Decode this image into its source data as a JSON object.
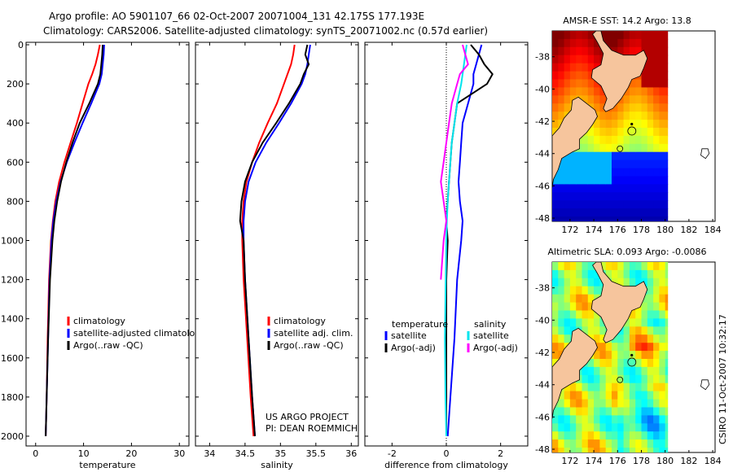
{
  "header": {
    "line1": "Argo profile: AO 5901107_66 02-Oct-2007 20071004_131 42.175S 177.193E",
    "line2": "Climatology: CARS2006. Satellite-adjusted climatology: synTS_20071002.nc (0.57d earlier)"
  },
  "credit": {
    "line1": "US ARGO PROJECT",
    "line2": "PI: DEAN ROEMMICH"
  },
  "side_text": "CSIRO 11-Oct-2007 10:32:17",
  "colors": {
    "climatology": "#ff0000",
    "satellite": "#0000ff",
    "argo": "#000000",
    "sat_sal": "#00e5ee",
    "argo_adj_sal": "#ff00ff"
  },
  "chart_data": [
    {
      "type": "line",
      "id": "temperature",
      "xlabel": "temperature",
      "xlim": [
        -2,
        32
      ],
      "ylim": [
        0,
        2050
      ],
      "xticks": [
        0,
        10,
        20,
        30
      ],
      "xtick_labels": [
        "0",
        "10",
        "20",
        "30"
      ],
      "yticks": [
        0,
        200,
        400,
        600,
        800,
        1000,
        1200,
        1400,
        1600,
        1800,
        2000
      ],
      "ytick_labels": [
        "0",
        "200",
        "400",
        "600",
        "800",
        "1000",
        "1200",
        "1400",
        "1600",
        "1800",
        "2000"
      ],
      "legend": [
        "climatology",
        "satellite-adjusted climatology",
        "Argo(..raw -QC)"
      ],
      "series": [
        {
          "name": "climatology",
          "color": "#ff0000",
          "x": [
            13.4,
            13.0,
            12.5,
            11.8,
            11.0,
            9.8,
            8.6,
            7.3,
            6.0,
            4.9,
            4.1,
            3.6,
            3.2,
            2.8,
            2.5,
            2.3,
            2.1
          ],
          "y": [
            0,
            50,
            100,
            150,
            200,
            300,
            400,
            500,
            600,
            700,
            800,
            900,
            1000,
            1200,
            1500,
            1800,
            2000
          ]
        },
        {
          "name": "satellite-adjusted climatology",
          "color": "#0000ff",
          "x": [
            14.3,
            14.2,
            14.0,
            13.8,
            13.3,
            11.6,
            9.8,
            8.1,
            6.5,
            5.2,
            4.3,
            3.7,
            3.3,
            2.9,
            2.6,
            2.3,
            2.1
          ],
          "y": [
            0,
            50,
            100,
            150,
            200,
            300,
            400,
            500,
            600,
            700,
            800,
            900,
            1000,
            1200,
            1500,
            1800,
            2000
          ]
        },
        {
          "name": "Argo(..raw -QC)",
          "color": "#000000",
          "x": [
            14.0,
            13.9,
            13.7,
            13.5,
            13.0,
            11.2,
            9.2,
            7.7,
            6.4,
            5.3,
            4.5,
            3.9,
            3.5,
            3.0,
            2.6,
            2.3,
            2.1
          ],
          "y": [
            0,
            50,
            100,
            150,
            200,
            300,
            400,
            500,
            600,
            700,
            800,
            900,
            1000,
            1200,
            1500,
            1800,
            2000
          ]
        }
      ]
    },
    {
      "type": "line",
      "id": "salinity",
      "xlabel": "salinity",
      "xlim": [
        33.8,
        36.1
      ],
      "ylim": [
        0,
        2050
      ],
      "xticks": [
        34,
        34.5,
        35,
        35.5,
        36
      ],
      "xtick_labels": [
        "34",
        "34.5",
        "35",
        "35.5",
        "36"
      ],
      "legend": [
        "climatology",
        "satellite adj. clim.",
        "Argo(..raw -QC)"
      ],
      "series": [
        {
          "name": "climatology",
          "color": "#ff0000",
          "x": [
            35.2,
            35.18,
            35.15,
            35.1,
            35.05,
            34.95,
            34.82,
            34.7,
            34.6,
            34.52,
            34.48,
            34.46,
            34.46,
            34.48,
            34.53,
            34.58,
            34.62
          ],
          "y": [
            0,
            50,
            100,
            150,
            200,
            300,
            400,
            500,
            600,
            700,
            800,
            900,
            1000,
            1200,
            1500,
            1800,
            2000
          ]
        },
        {
          "name": "satellite adj. clim.",
          "color": "#0000ff",
          "x": [
            35.42,
            35.4,
            35.38,
            35.35,
            35.3,
            35.15,
            34.98,
            34.8,
            34.65,
            34.55,
            34.5,
            34.48,
            34.48,
            34.5,
            34.55,
            34.6,
            34.64
          ],
          "y": [
            0,
            50,
            100,
            150,
            200,
            300,
            400,
            500,
            600,
            700,
            800,
            900,
            1000,
            1200,
            1500,
            1800,
            2000
          ]
        },
        {
          "name": "Argo(..raw -QC)",
          "color": "#000000",
          "x": [
            35.38,
            35.35,
            35.4,
            35.33,
            35.28,
            35.12,
            34.94,
            34.75,
            34.6,
            34.5,
            34.45,
            34.43,
            34.48,
            34.5,
            34.55,
            34.6,
            34.64
          ],
          "y": [
            0,
            50,
            100,
            150,
            200,
            300,
            400,
            500,
            600,
            700,
            800,
            900,
            1000,
            1200,
            1500,
            1800,
            2000
          ]
        }
      ]
    },
    {
      "type": "line",
      "id": "difference",
      "xlabel": "difference from climatology",
      "xlim": [
        -3,
        3
      ],
      "ylim": [
        0,
        2050
      ],
      "xticks": [
        -2,
        0,
        2
      ],
      "xtick_labels": [
        "-2",
        "0",
        "2"
      ],
      "legend_left_title": "temperature",
      "legend_right_title": "salinity",
      "legend": [
        "satellite",
        "Argo(-adj)",
        "satellite",
        "Argo(-adj)"
      ],
      "series": [
        {
          "name": "temperature satellite",
          "color": "#0000ff",
          "x": [
            1.3,
            1.2,
            1.1,
            1.0,
            1.0,
            0.8,
            0.6,
            0.55,
            0.5,
            0.45,
            0.5,
            0.6,
            0.55,
            0.4,
            0.3,
            0.15,
            0.05
          ],
          "y": [
            0,
            50,
            100,
            150,
            200,
            300,
            400,
            500,
            600,
            700,
            800,
            900,
            1000,
            1200,
            1500,
            1800,
            2000
          ]
        },
        {
          "name": "temperature Argo(-adj)",
          "color": "#000000",
          "x": [
            0.9,
            1.2,
            1.4,
            1.7,
            1.5,
            0.4,
            0.3,
            0.2,
            0.15,
            0.1,
            0.05,
            0.0,
            0.05,
            0.0,
            0.0,
            0.0,
            0.0
          ],
          "y": [
            0,
            50,
            100,
            150,
            200,
            300,
            400,
            500,
            600,
            700,
            800,
            900,
            1000,
            1200,
            1500,
            1800,
            2000
          ]
        },
        {
          "name": "salinity satellite",
          "color": "#00e5ee",
          "x": [
            0.75,
            0.7,
            0.65,
            0.6,
            0.55,
            0.4,
            0.3,
            0.2,
            0.15,
            0.1,
            0.05,
            0.02,
            0.0,
            -0.02,
            -0.05,
            -0.03,
            0.0
          ],
          "y": [
            0,
            50,
            100,
            150,
            200,
            300,
            400,
            500,
            600,
            700,
            800,
            900,
            1000,
            1200,
            1500,
            1800,
            2000
          ]
        },
        {
          "name": "salinity Argo(-adj)",
          "color": "#ff00ff",
          "x": [
            0.6,
            0.7,
            0.8,
            0.5,
            0.4,
            0.2,
            0.1,
            0.0,
            -0.1,
            -0.2,
            -0.1,
            0.0,
            -0.1,
            -0.2
          ],
          "y": [
            0,
            50,
            100,
            150,
            200,
            300,
            400,
            500,
            600,
            700,
            800,
            900,
            1000,
            1200
          ]
        }
      ]
    },
    {
      "type": "heatmap",
      "id": "sst_map",
      "title": "AMSR-E SST: 14.2 Argo: 13.8",
      "xlim": [
        170.5,
        184.2
      ],
      "ylim": [
        -48.2,
        -36.4
      ],
      "xticks": [
        172,
        174,
        176,
        178,
        180,
        182,
        184
      ],
      "xtick_labels": [
        "172",
        "174",
        "176",
        "178",
        "180",
        "182",
        "184"
      ],
      "yticks": [
        -38,
        -40,
        -42,
        -44,
        -46,
        -48
      ],
      "ytick_labels": [
        "-38",
        "-40",
        "-42",
        "-44",
        "-46",
        "-48"
      ],
      "argo_position": [
        177.193,
        -42.175
      ],
      "data_lon_max": 180.2
    },
    {
      "type": "heatmap",
      "id": "sla_map",
      "title": "Altimetric SLA: 0.093 Argo: -0.0086",
      "xlim": [
        170.5,
        184.2
      ],
      "ylim": [
        -48.2,
        -36.4
      ],
      "xticks": [
        172,
        174,
        176,
        178,
        180,
        182,
        184
      ],
      "xtick_labels": [
        "172",
        "174",
        "176",
        "178",
        "180",
        "182",
        "184"
      ],
      "yticks": [
        -38,
        -40,
        -42,
        -44,
        -46,
        -48
      ],
      "ytick_labels": [
        "-38",
        "-40",
        "-42",
        "-44",
        "-46",
        "-48"
      ],
      "argo_position": [
        177.193,
        -42.175
      ],
      "data_lon_max": 180.2
    }
  ]
}
